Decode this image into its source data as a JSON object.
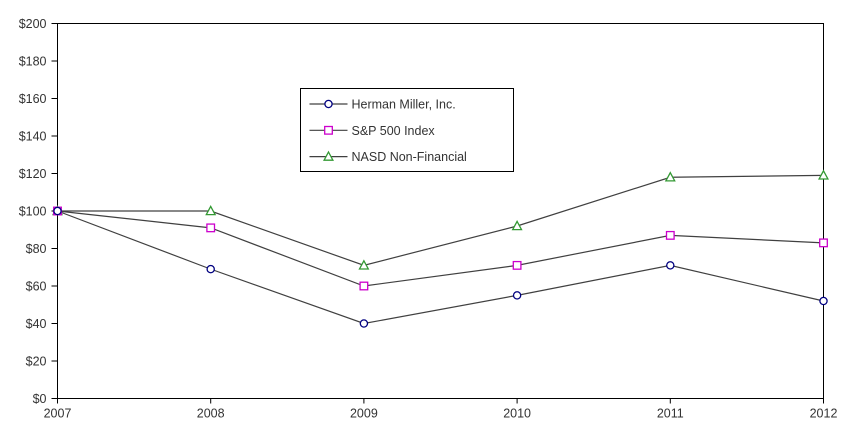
{
  "chart_data": {
    "type": "line",
    "title": "",
    "xlabel": "",
    "ylabel": "",
    "categories": [
      "2007",
      "2008",
      "2009",
      "2010",
      "2011",
      "2012"
    ],
    "series": [
      {
        "name": "Herman Miller, Inc.",
        "marker": "circle",
        "color": "#000080",
        "values": [
          100,
          69,
          40,
          55,
          71,
          52
        ]
      },
      {
        "name": "S&P 500 Index",
        "marker": "square",
        "color": "#CC00CC",
        "values": [
          100,
          91,
          60,
          71,
          87,
          83
        ]
      },
      {
        "name": "NASD Non-Financial",
        "marker": "triangle",
        "color": "#339933",
        "values": [
          100,
          100,
          71,
          92,
          118,
          119
        ]
      }
    ],
    "ylim": [
      0,
      200
    ],
    "ytick_step": 20,
    "ytick_prefix": "$",
    "grid": false,
    "legend_position": "inside-top-center",
    "line_color": "#404040",
    "axis_color": "#000000",
    "text_color": "#333333",
    "marker_fill": "#FFFFFF",
    "background": "#FFFFFF"
  }
}
